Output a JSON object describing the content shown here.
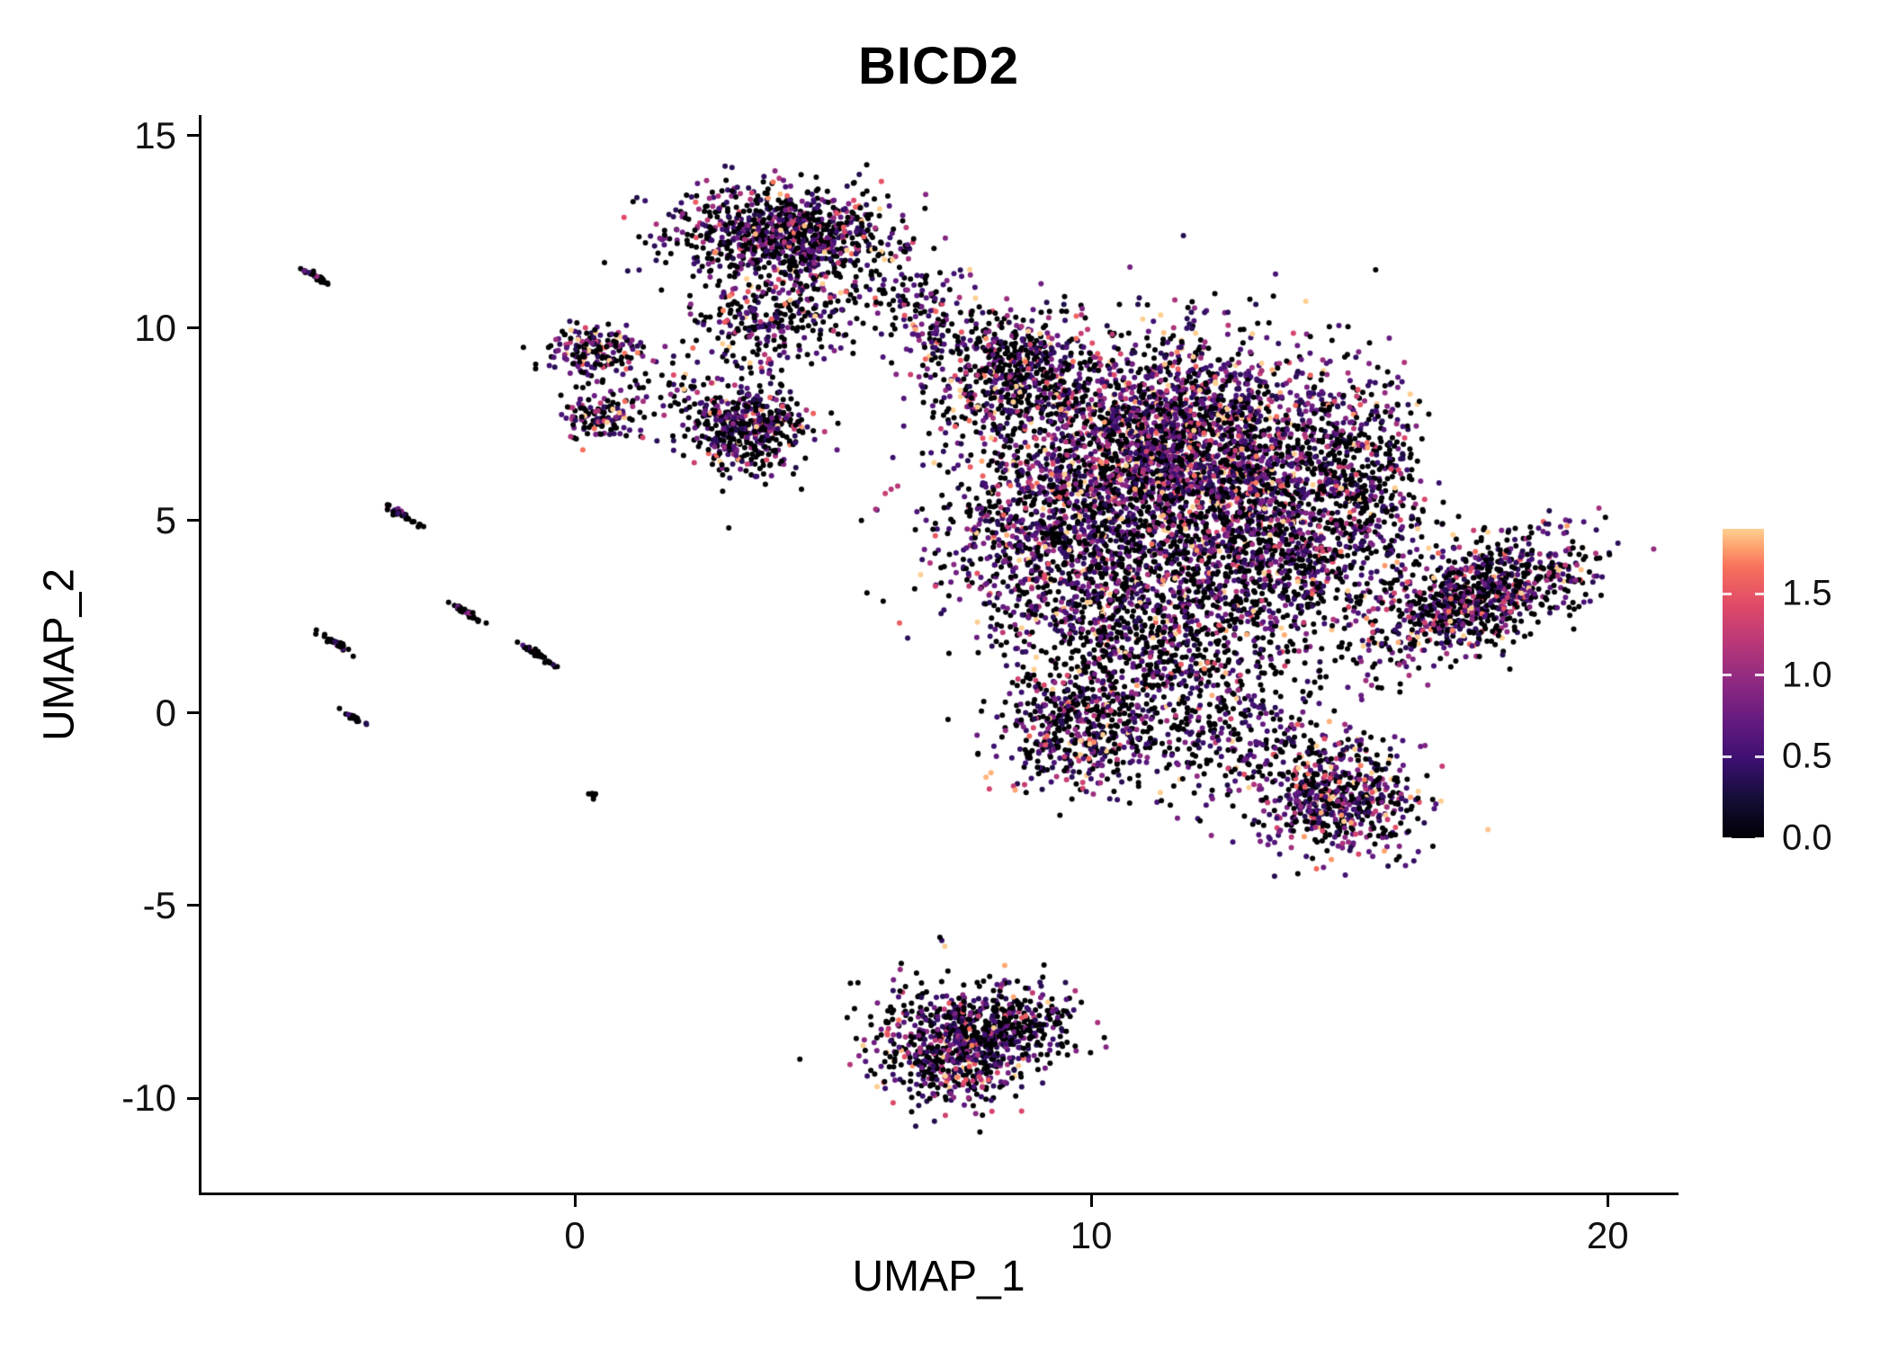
{
  "title": "BICD2",
  "x_axis": {
    "label": "UMAP_1",
    "ticks": [
      0,
      10,
      20
    ]
  },
  "y_axis": {
    "label": "UMAP_2",
    "ticks": [
      15,
      10,
      5,
      0,
      -5,
      -10
    ]
  },
  "legend": {
    "ticks": [
      {
        "label": "1.5",
        "value": 1.5
      },
      {
        "label": "1.0",
        "value": 1.0
      },
      {
        "label": "0.5",
        "value": 0.5
      },
      {
        "label": "0.0",
        "value": 0.0
      }
    ],
    "vmin": 0,
    "vmax": 1.9
  },
  "colormap": [
    {
      "t": 0.0,
      "color": "#000004"
    },
    {
      "t": 0.125,
      "color": "#140e36"
    },
    {
      "t": 0.25,
      "color": "#3b0f70"
    },
    {
      "t": 0.375,
      "color": "#641a80"
    },
    {
      "t": 0.5,
      "color": "#8c2981"
    },
    {
      "t": 0.625,
      "color": "#b73779"
    },
    {
      "t": 0.75,
      "color": "#de4968"
    },
    {
      "t": 0.875,
      "color": "#f7705c"
    },
    {
      "t": 0.9375,
      "color": "#fe9f6d"
    },
    {
      "t": 1.0,
      "color": "#fecf92"
    }
  ],
  "chart_data": {
    "type": "scatter",
    "title": "BICD2",
    "xlabel": "UMAP_1",
    "ylabel": "UMAP_2",
    "xlim": [
      -7.23,
      21.32
    ],
    "ylim": [
      -12.45,
      15.48
    ],
    "grid": false,
    "legend_position": "right",
    "point_radius_px": 3,
    "expr_base": 0.3,
    "clusters": [
      {
        "name": "top-main",
        "cx": 4.1,
        "cy": 12.4,
        "sx": 1.05,
        "sy": 0.6,
        "n": 950,
        "p0": 0.5,
        "m": 0.5
      },
      {
        "name": "top-tail",
        "cx": 3.9,
        "cy": 10.2,
        "sx": 0.8,
        "sy": 0.7,
        "n": 300,
        "p0": 0.55,
        "m": 0.45
      },
      {
        "name": "top-right-sparse",
        "cx": 6.3,
        "cy": 11.0,
        "sx": 0.7,
        "sy": 0.6,
        "n": 80,
        "p0": 0.55,
        "m": 0.5
      },
      {
        "name": "bridge-top",
        "cx": 6.9,
        "cy": 9.9,
        "sx": 0.5,
        "sy": 0.6,
        "n": 80,
        "p0": 0.5,
        "m": 0.55
      },
      {
        "name": "left-upper",
        "cx": 0.45,
        "cy": 9.4,
        "sx": 0.45,
        "sy": 0.35,
        "n": 170,
        "p0": 0.4,
        "m": 0.65
      },
      {
        "name": "left-lower",
        "cx": 0.5,
        "cy": 7.7,
        "sx": 0.4,
        "sy": 0.3,
        "n": 120,
        "p0": 0.45,
        "m": 0.55
      },
      {
        "name": "left-bridge",
        "cx": 1.6,
        "cy": 8.6,
        "sx": 0.6,
        "sy": 0.5,
        "n": 60,
        "p0": 0.55,
        "m": 0.45
      },
      {
        "name": "mid-blob",
        "cx": 3.3,
        "cy": 7.4,
        "sx": 0.55,
        "sy": 0.55,
        "n": 480,
        "p0": 0.5,
        "m": 0.5
      },
      {
        "name": "central-upper-left",
        "cx": 8.5,
        "cy": 8.7,
        "sx": 0.85,
        "sy": 0.85,
        "n": 650,
        "p0": 0.5,
        "m": 0.55
      },
      {
        "name": "central-upper-right",
        "cx": 11.9,
        "cy": 7.1,
        "sx": 1.5,
        "sy": 1.3,
        "n": 2300,
        "p0": 0.35,
        "m": 0.62
      },
      {
        "name": "central-mid-left",
        "cx": 9.7,
        "cy": 4.7,
        "sx": 1.3,
        "sy": 1.4,
        "n": 1400,
        "p0": 0.45,
        "m": 0.58
      },
      {
        "name": "central-right",
        "cx": 13.6,
        "cy": 4.5,
        "sx": 1.2,
        "sy": 1.4,
        "n": 1100,
        "p0": 0.45,
        "m": 0.55
      },
      {
        "name": "central-lower",
        "cx": 11.4,
        "cy": 1.9,
        "sx": 1.6,
        "sy": 1.1,
        "n": 850,
        "p0": 0.58,
        "m": 0.5
      },
      {
        "name": "central-right-edge",
        "cx": 15.3,
        "cy": 6.3,
        "sx": 0.6,
        "sy": 1.4,
        "n": 350,
        "p0": 0.55,
        "m": 0.5
      },
      {
        "name": "knob-lower-left",
        "cx": 9.8,
        "cy": -0.4,
        "sx": 0.75,
        "sy": 0.75,
        "n": 450,
        "p0": 0.5,
        "m": 0.55
      },
      {
        "name": "connector",
        "cx": 12.4,
        "cy": -0.6,
        "sx": 1.2,
        "sy": 0.8,
        "n": 300,
        "p0": 0.55,
        "m": 0.5
      },
      {
        "name": "lower-right",
        "cx": 14.8,
        "cy": -2.2,
        "sx": 0.8,
        "sy": 0.75,
        "n": 600,
        "p0": 0.4,
        "m": 0.6
      },
      {
        "name": "right-wing",
        "cx": 17.6,
        "cy": 3.1,
        "sx": 1.15,
        "sy": 0.6,
        "n": 900,
        "p0": 0.45,
        "m": 0.58,
        "angle": 35
      },
      {
        "name": "bottom",
        "cx": 7.5,
        "cy": -8.6,
        "sx": 0.85,
        "sy": 0.75,
        "n": 800,
        "p0": 0.5,
        "m": 0.55
      },
      {
        "name": "bottom-arm",
        "cx": 8.8,
        "cy": -7.9,
        "sx": 0.5,
        "sy": 0.4,
        "n": 120,
        "p0": 0.55,
        "m": 0.5
      },
      {
        "name": "streak-1",
        "cx": -5.05,
        "cy": 11.35,
        "sx": 0.22,
        "sy": 0.035,
        "n": 25,
        "p0": 0.78,
        "m": 0.3,
        "angle": -40
      },
      {
        "name": "streak-2",
        "cx": -3.35,
        "cy": 5.15,
        "sx": 0.22,
        "sy": 0.035,
        "n": 30,
        "p0": 0.78,
        "m": 0.3,
        "angle": -40
      },
      {
        "name": "streak-3",
        "cx": -2.1,
        "cy": 2.6,
        "sx": 0.22,
        "sy": 0.035,
        "n": 35,
        "p0": 0.78,
        "m": 0.3,
        "angle": -40
      },
      {
        "name": "streak-4",
        "cx": -4.55,
        "cy": 1.75,
        "sx": 0.22,
        "sy": 0.035,
        "n": 35,
        "p0": 0.78,
        "m": 0.3,
        "angle": -40
      },
      {
        "name": "streak-5",
        "cx": -0.7,
        "cy": 1.5,
        "sx": 0.22,
        "sy": 0.035,
        "n": 40,
        "p0": 0.78,
        "m": 0.3,
        "angle": -40
      },
      {
        "name": "streak-6",
        "cx": -4.3,
        "cy": -0.1,
        "sx": 0.18,
        "sy": 0.035,
        "n": 25,
        "p0": 0.78,
        "m": 0.3,
        "angle": -40
      },
      {
        "name": "streak-7",
        "cx": 0.35,
        "cy": -2.1,
        "sx": 0.08,
        "sy": 0.035,
        "n": 10,
        "p0": 0.78,
        "m": 0.3,
        "angle": -40
      }
    ]
  }
}
